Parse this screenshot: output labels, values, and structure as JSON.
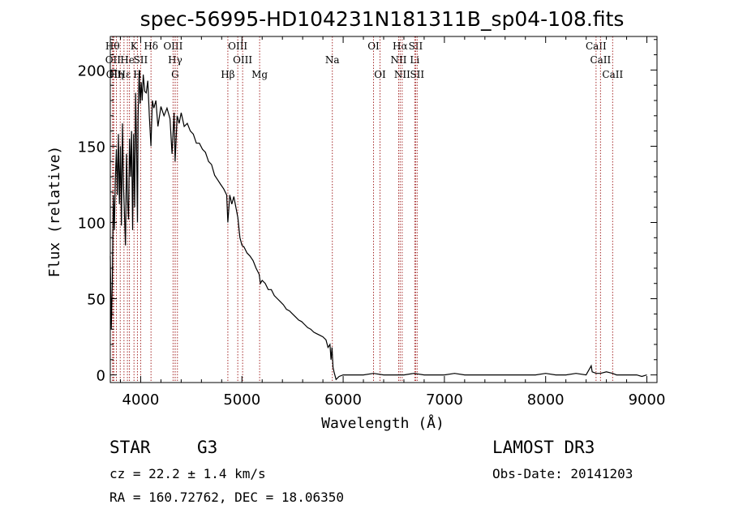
{
  "chart_data": {
    "type": "line",
    "title": "spec-56995-HD104231N181311B_sp04-108.fits",
    "xlabel": "Wavelength (Å)",
    "ylabel": "Flux (relative)",
    "xlim": [
      3700,
      9100
    ],
    "ylim": [
      -5,
      222
    ],
    "xticks": [
      4000,
      5000,
      6000,
      7000,
      8000,
      9000
    ],
    "yticks": [
      0,
      50,
      100,
      150,
      200
    ],
    "grid": false,
    "line_color": "#000000",
    "marker_color": "#a52a2a",
    "series": [
      {
        "name": "flux",
        "x": [
          3700,
          3710,
          3720,
          3730,
          3740,
          3750,
          3760,
          3770,
          3780,
          3790,
          3800,
          3810,
          3820,
          3830,
          3840,
          3850,
          3860,
          3870,
          3880,
          3890,
          3900,
          3910,
          3920,
          3930,
          3940,
          3950,
          3960,
          3968,
          3975,
          3985,
          3995,
          4005,
          4015,
          4025,
          4040,
          4055,
          4070,
          4085,
          4101,
          4115,
          4130,
          4150,
          4170,
          4200,
          4230,
          4260,
          4290,
          4310,
          4330,
          4340,
          4360,
          4380,
          4400,
          4430,
          4460,
          4490,
          4520,
          4550,
          4580,
          4610,
          4640,
          4670,
          4700,
          4730,
          4760,
          4790,
          4820,
          4850,
          4861,
          4880,
          4900,
          4920,
          4940,
          4960,
          4980,
          5000,
          5020,
          5050,
          5080,
          5110,
          5140,
          5170,
          5183,
          5200,
          5230,
          5260,
          5290,
          5320,
          5350,
          5380,
          5410,
          5440,
          5470,
          5500,
          5530,
          5560,
          5590,
          5620,
          5650,
          5680,
          5710,
          5740,
          5770,
          5800,
          5830,
          5850,
          5870,
          5880,
          5890,
          5900,
          5910,
          5930,
          5960,
          6000,
          6100,
          6200,
          6300,
          6400,
          6500,
          6563,
          6600,
          6700,
          6800,
          6900,
          7000,
          7100,
          7200,
          7300,
          7400,
          7500,
          7600,
          7700,
          7800,
          7900,
          8000,
          8100,
          8200,
          8300,
          8400,
          8450,
          8460,
          8500,
          8542,
          8600,
          8662,
          8700,
          8800,
          8900,
          8950,
          9000
        ],
        "values": [
          78,
          30,
          62,
          118,
          95,
          128,
          148,
          118,
          158,
          112,
          150,
          98,
          165,
          125,
          105,
          85,
          145,
          115,
          102,
          155,
          130,
          160,
          95,
          158,
          110,
          185,
          145,
          100,
          170,
          200,
          178,
          192,
          180,
          197,
          186,
          185,
          193,
          170,
          150,
          180,
          175,
          180,
          163,
          176,
          170,
          175,
          168,
          145,
          172,
          140,
          170,
          165,
          172,
          163,
          165,
          160,
          158,
          152,
          152,
          148,
          146,
          140,
          138,
          131,
          128,
          125,
          122,
          118,
          100,
          118,
          112,
          117,
          110,
          103,
          90,
          85,
          84,
          80,
          78,
          75,
          70,
          66,
          60,
          62,
          60,
          56,
          56,
          52,
          50,
          48,
          46,
          43,
          42,
          40,
          38,
          36,
          35,
          33,
          31,
          30,
          28,
          27,
          26,
          25,
          23,
          18,
          20,
          10,
          18,
          5,
          2,
          -3,
          -1,
          0,
          0,
          0,
          1,
          0,
          0,
          0,
          0,
          1,
          0,
          0,
          0,
          1,
          0,
          0,
          0,
          0,
          0,
          0,
          0,
          0,
          1,
          0,
          0,
          1,
          0,
          6,
          2,
          1,
          1,
          2,
          1,
          0,
          0,
          0,
          -1,
          0
        ]
      }
    ],
    "line_markers": [
      {
        "x": 3722,
        "label": "Hθ",
        "row": 1
      },
      {
        "x": 3727,
        "label": "OII",
        "row": 2
      },
      {
        "x": 3735,
        "label": "OII",
        "row": 3
      },
      {
        "x": 3760,
        "label": "Hη",
        "row": 3
      },
      {
        "x": 3798,
        "label": "",
        "row": 0
      },
      {
        "x": 3835,
        "label": "Hε",
        "row": 3
      },
      {
        "x": 3869,
        "label": "He",
        "row": 2
      },
      {
        "x": 3889,
        "label": "",
        "row": 0
      },
      {
        "x": 3934,
        "label": "K",
        "row": 1
      },
      {
        "x": 3968,
        "label": "H",
        "row": 3
      },
      {
        "x": 4000,
        "label": "SII",
        "row": 2
      },
      {
        "x": 4102,
        "label": "Hδ",
        "row": 1
      },
      {
        "x": 4320,
        "label": "OIII",
        "row": 1
      },
      {
        "x": 4341,
        "label": "Hγ",
        "row": 2
      },
      {
        "x": 4340,
        "label": "G",
        "row": 3
      },
      {
        "x": 4363,
        "label": "",
        "row": 0
      },
      {
        "x": 4861,
        "label": "Hβ",
        "row": 3
      },
      {
        "x": 4959,
        "label": "OIII",
        "row": 1
      },
      {
        "x": 5007,
        "label": "OIII",
        "row": 2
      },
      {
        "x": 5175,
        "label": "Mg",
        "row": 3
      },
      {
        "x": 5893,
        "label": "Na",
        "row": 2
      },
      {
        "x": 6300,
        "label": "OI",
        "row": 1
      },
      {
        "x": 6364,
        "label": "OI",
        "row": 3
      },
      {
        "x": 6548,
        "label": "NII",
        "row": 2
      },
      {
        "x": 6563,
        "label": "Hα",
        "row": 1
      },
      {
        "x": 6583,
        "label": "NII",
        "row": 3
      },
      {
        "x": 6707,
        "label": "Li",
        "row": 2
      },
      {
        "x": 6716,
        "label": "SII",
        "row": 1
      },
      {
        "x": 6731,
        "label": "SII",
        "row": 3
      },
      {
        "x": 8498,
        "label": "CaII",
        "row": 1
      },
      {
        "x": 8542,
        "label": "CaII",
        "row": 2
      },
      {
        "x": 8662,
        "label": "CaII",
        "row": 3
      }
    ]
  },
  "info": {
    "object_type": "STAR",
    "subclass": "G3",
    "survey": "LAMOST DR3",
    "cz": "cz = 22.2 ± 1.4 km/s",
    "obs_date": "Obs-Date: 20141203",
    "coords": "RA = 160.72762, DEC =  18.06350"
  }
}
